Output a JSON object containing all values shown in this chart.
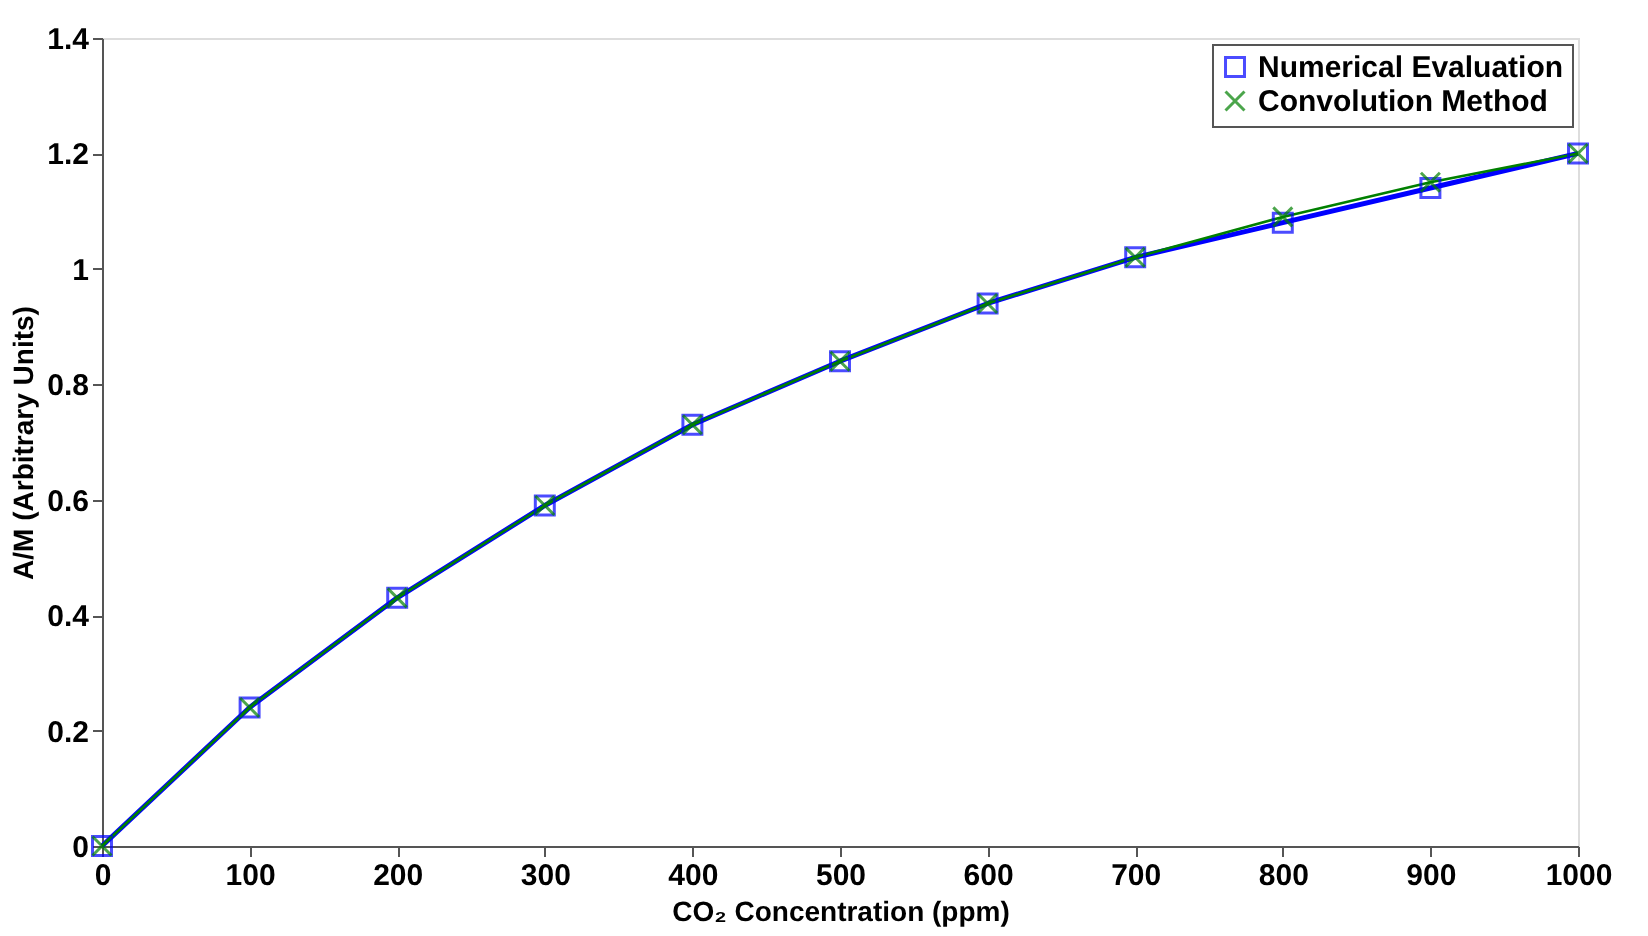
{
  "chart_data": {
    "type": "line",
    "xlabel": "CO₂ Concentration (ppm)",
    "ylabel": "A/M (Arbitrary Units)",
    "x": [
      0,
      100,
      200,
      300,
      400,
      500,
      600,
      700,
      800,
      900,
      1000
    ],
    "series": [
      {
        "name": "Numerical Evaluation",
        "color": "#0000ff",
        "marker": "square",
        "values": [
          0,
          0.24,
          0.43,
          0.59,
          0.73,
          0.84,
          0.94,
          1.02,
          1.08,
          1.14,
          1.2
        ]
      },
      {
        "name": "Convolution Method",
        "color": "#008000",
        "marker": "cross",
        "values": [
          0,
          0.24,
          0.43,
          0.59,
          0.73,
          0.84,
          0.94,
          1.02,
          1.09,
          1.15,
          1.2
        ]
      }
    ],
    "xlim": [
      0,
      1000
    ],
    "xticks": [
      0,
      100,
      200,
      300,
      400,
      500,
      600,
      700,
      800,
      900,
      1000
    ],
    "ylim": [
      0,
      1.4
    ],
    "yticks": [
      0,
      0.2,
      0.4,
      0.6,
      0.8,
      1,
      1.2,
      1.4
    ],
    "grid": false,
    "legend": "top right",
    "line_style": "solid"
  }
}
